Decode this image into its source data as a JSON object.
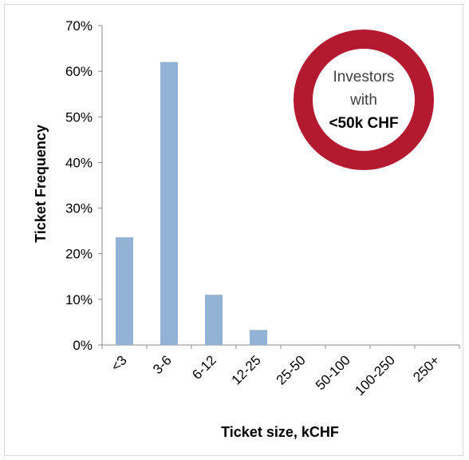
{
  "chart_data": {
    "type": "bar",
    "categories": [
      "<3",
      "3-6",
      "6-12",
      "12-25",
      "25-50",
      "50-100",
      "100-250",
      "250+"
    ],
    "values": [
      23.6,
      62.0,
      11.0,
      3.3,
      0,
      0,
      0,
      0
    ],
    "yticks": [
      "0%",
      "10%",
      "20%",
      "30%",
      "40%",
      "50%",
      "60%",
      "70%"
    ],
    "ylim": [
      0,
      70
    ],
    "xlabel": "Ticket size, kCHF",
    "ylabel": "Ticket Frequency",
    "bar_color": "#93b3d4",
    "grid": false,
    "legend": "none"
  },
  "badge": {
    "line1": "Investors",
    "line2": "with",
    "line3": "<50k CHF",
    "ring_color": "#b3192f"
  }
}
